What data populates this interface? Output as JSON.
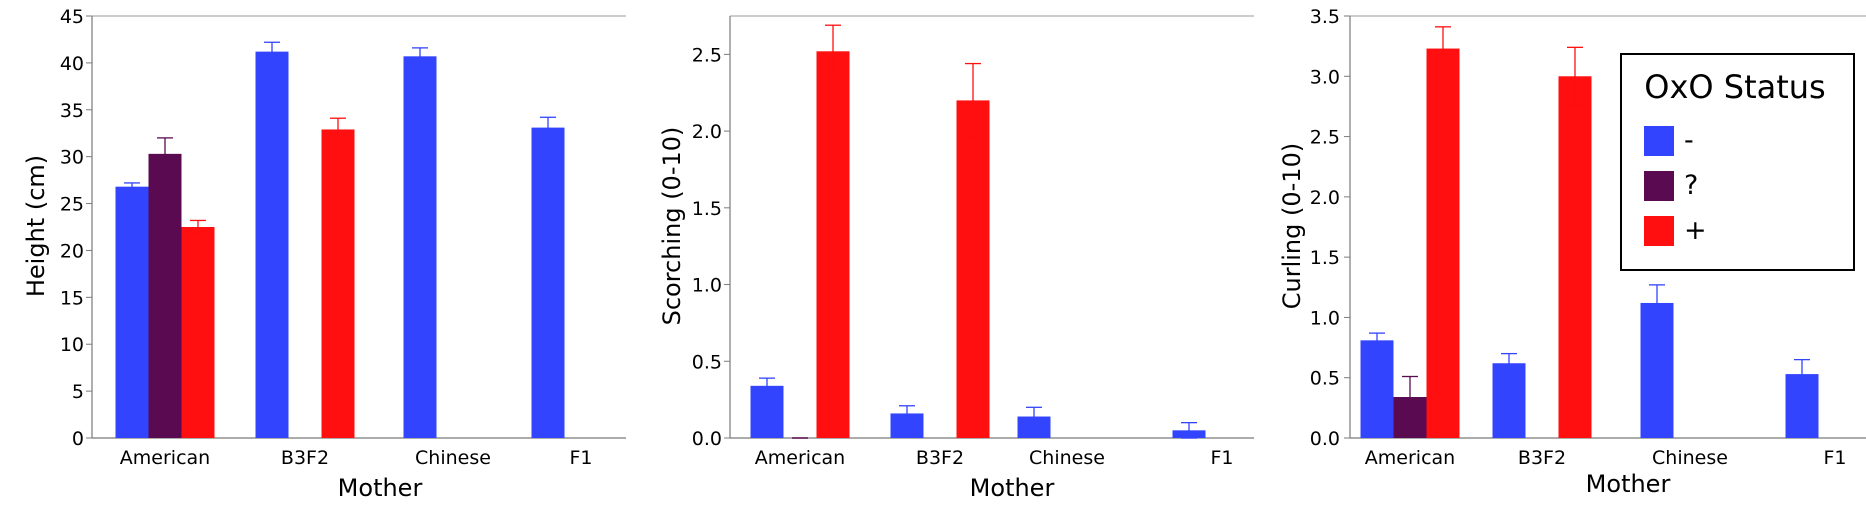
{
  "chart_data": [
    {
      "type": "bar",
      "xlabel": "Mother",
      "ylabel": "Height (cm)",
      "ylim": [
        0,
        45
      ],
      "yticks": [
        "0",
        "5",
        "10",
        "15",
        "20",
        "25",
        "30",
        "35",
        "40",
        "45"
      ],
      "grid": false,
      "categories": [
        "American",
        "B3F2",
        "Chinese",
        "F1"
      ],
      "series": [
        {
          "name": "-",
          "color": "#3344ff",
          "values": [
            26.8,
            41.2,
            40.7,
            33.1
          ],
          "err": [
            0.4,
            1.0,
            0.9,
            1.1
          ]
        },
        {
          "name": "?",
          "color": "#5a0a50",
          "values": [
            30.3,
            null,
            null,
            null
          ],
          "err": [
            1.7,
            null,
            null,
            null
          ]
        },
        {
          "name": "+",
          "color": "#ff0f0f",
          "values": [
            22.5,
            32.9,
            null,
            null
          ],
          "err": [
            0.7,
            1.2,
            null,
            null
          ]
        }
      ]
    },
    {
      "type": "bar",
      "xlabel": "Mother",
      "ylabel": "Scorching (0-10)",
      "ylim": [
        0,
        2.75
      ],
      "yticks": [
        "0.0",
        "0.5",
        "1.0",
        "1.5",
        "2.0",
        "2.5"
      ],
      "grid": false,
      "categories": [
        "American",
        "B3F2",
        "Chinese",
        "F1"
      ],
      "series": [
        {
          "name": "-",
          "color": "#3344ff",
          "values": [
            0.34,
            0.16,
            0.14,
            0.05
          ],
          "err": [
            0.05,
            0.05,
            0.06,
            0.05
          ]
        },
        {
          "name": "?",
          "color": "#5a0a50",
          "values": [
            0.0,
            null,
            null,
            null
          ],
          "err": [
            0.0,
            null,
            null,
            null
          ]
        },
        {
          "name": "+",
          "color": "#ff0f0f",
          "values": [
            2.52,
            2.2,
            null,
            null
          ],
          "err": [
            0.17,
            0.24,
            null,
            null
          ]
        }
      ]
    },
    {
      "type": "bar",
      "xlabel": "Mother",
      "ylabel": "Curling (0-10)",
      "ylim": [
        0,
        3.5
      ],
      "yticks": [
        "0.0",
        "0.5",
        "1.0",
        "1.5",
        "2.0",
        "2.5",
        "3.0",
        "3.5"
      ],
      "grid": false,
      "categories": [
        "American",
        "B3F2",
        "Chinese",
        "F1"
      ],
      "series": [
        {
          "name": "-",
          "color": "#3344ff",
          "values": [
            0.81,
            0.62,
            1.12,
            0.53
          ],
          "err": [
            0.06,
            0.08,
            0.15,
            0.12
          ]
        },
        {
          "name": "?",
          "color": "#5a0a50",
          "values": [
            0.34,
            null,
            null,
            null
          ],
          "err": [
            0.17,
            null,
            null,
            null
          ]
        },
        {
          "name": "+",
          "color": "#ff0f0f",
          "values": [
            3.23,
            3.0,
            null,
            null
          ],
          "err": [
            0.18,
            0.24,
            null,
            null
          ]
        }
      ],
      "legend": {
        "title": "OxO Status",
        "placement": "top-right",
        "entries": [
          {
            "label": "-",
            "color": "#3344ff"
          },
          {
            "label": "?",
            "color": "#5a0a50"
          },
          {
            "label": "+",
            "color": "#ff0f0f"
          }
        ]
      }
    }
  ]
}
